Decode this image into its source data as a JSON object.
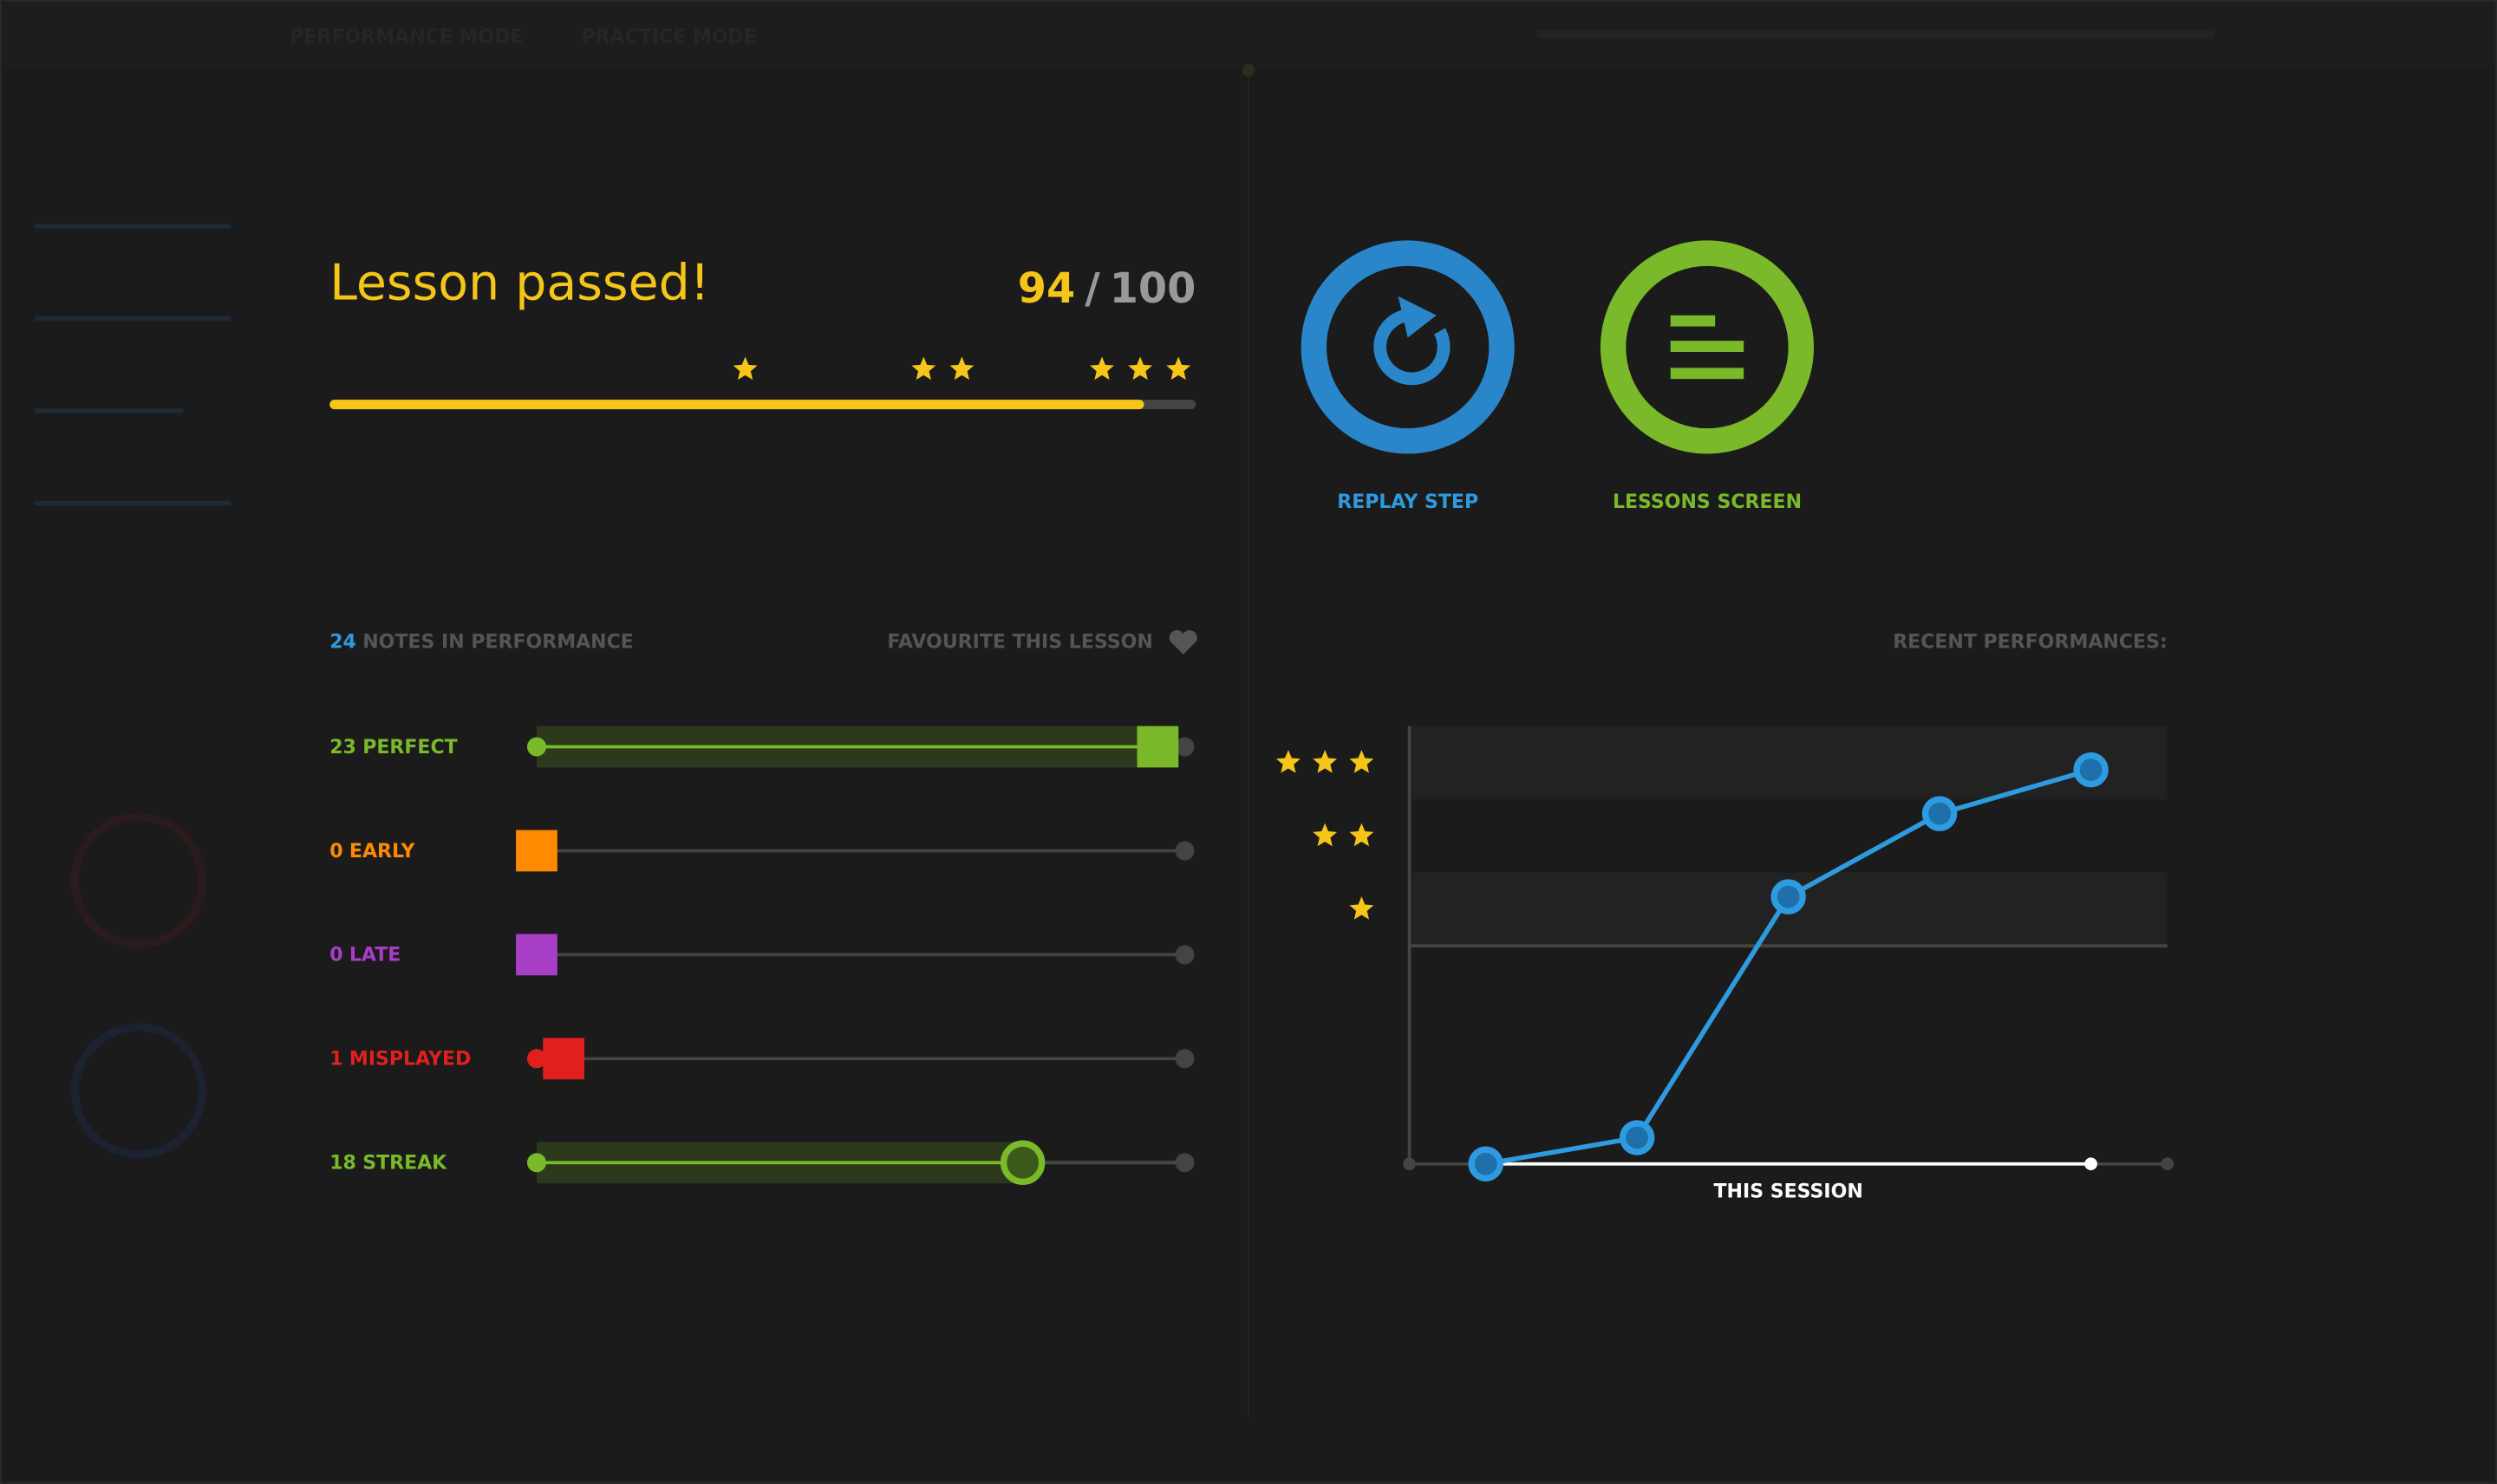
{
  "header": {
    "tabs": [
      "PERFORMANCE MODE",
      "PRACTICE MODE"
    ]
  },
  "result": {
    "title": "Lesson passed!",
    "score": 94,
    "separator": "/",
    "total": 100
  },
  "buttons": [
    {
      "label": "REPLAY STEP",
      "color": "#2a86c8"
    },
    {
      "label": "LESSONS SCREEN",
      "color": "#7ab929"
    }
  ],
  "notes": {
    "count": 24,
    "label": "NOTES IN PERFORMANCE",
    "favourite": "FAVOURITE THIS LESSON"
  },
  "stats": [
    {
      "count": 23,
      "label": "PERFECT",
      "color": "#7ab929",
      "marker": "square",
      "filled": true
    },
    {
      "count": 0,
      "label": "EARLY",
      "color": "#ff8a00",
      "marker": "square",
      "filled": false
    },
    {
      "count": 0,
      "label": "LATE",
      "color": "#a63fc6",
      "marker": "square",
      "filled": false
    },
    {
      "count": 1,
      "label": "MISPLAYED",
      "color": "#e0201e",
      "marker": "square",
      "filled": false
    },
    {
      "count": 18,
      "label": "STREAK",
      "color": "#7ab929",
      "marker": "circle",
      "filled": true
    }
  ],
  "chart_data": {
    "type": "line",
    "title": "RECENT PERFORMANCES:",
    "x_label": "THIS SESSION",
    "values": [
      0,
      6,
      61,
      80,
      90
    ],
    "color": "#2e9be0",
    "ylim": [
      0,
      100
    ]
  }
}
